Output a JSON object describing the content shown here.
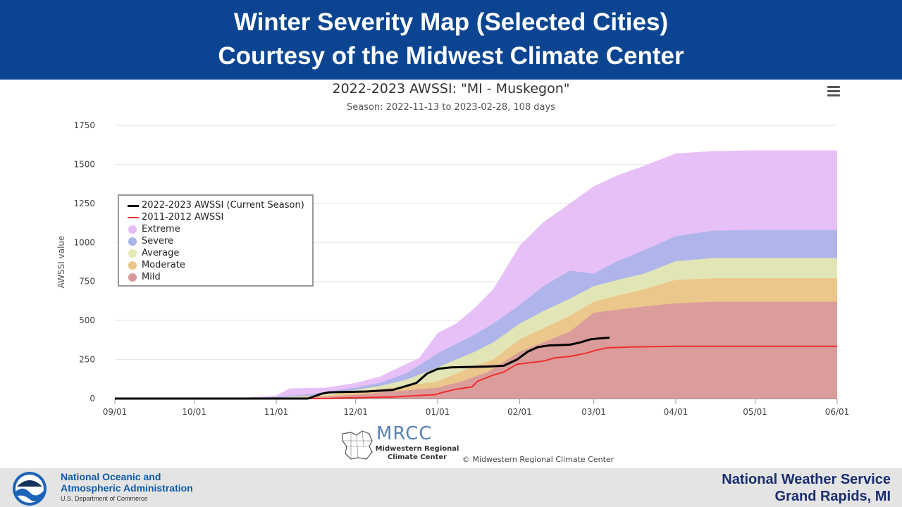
{
  "banner": {
    "line1": "Winter Severity Map (Selected Cities)",
    "line2": "Courtesy of the Midwest Climate Center"
  },
  "chart_data": {
    "type": "area",
    "title": "2022-2023 AWSSI: \"MI - Muskegon\"",
    "subtitle": "Season: 2022-11-13 to 2023-02-28, 108 days",
    "ylabel": "AWSSI value",
    "xlabel": "",
    "ylim": [
      0,
      1750
    ],
    "yticks": [
      0,
      250,
      500,
      750,
      1000,
      1250,
      1500,
      1750
    ],
    "xlim": [
      "2022-09-01",
      "2023-06-01"
    ],
    "xticks": [
      {
        "date": "2022-09-01",
        "label": "09/01"
      },
      {
        "date": "2022-10-01",
        "label": "10/01"
      },
      {
        "date": "2022-11-01",
        "label": "11/01"
      },
      {
        "date": "2022-12-01",
        "label": "12/01"
      },
      {
        "date": "2023-01-01",
        "label": "01/01"
      },
      {
        "date": "2023-02-01",
        "label": "02/01"
      },
      {
        "date": "2023-03-01",
        "label": "03/01"
      },
      {
        "date": "2023-04-01",
        "label": "04/01"
      },
      {
        "date": "2023-05-01",
        "label": "05/01"
      },
      {
        "date": "2023-06-01",
        "label": "06/01"
      }
    ],
    "grid": true,
    "legend_position": "upper-left",
    "bands": [
      {
        "name": "Extreme",
        "color": "#e6bbf7",
        "points": [
          [
            "2022-09-01",
            0
          ],
          [
            "2022-10-10",
            0
          ],
          [
            "2022-10-20",
            5
          ],
          [
            "2022-11-01",
            20
          ],
          [
            "2022-11-06",
            65
          ],
          [
            "2022-11-20",
            70
          ],
          [
            "2022-12-01",
            100
          ],
          [
            "2022-12-10",
            140
          ],
          [
            "2022-12-20",
            220
          ],
          [
            "2022-12-25",
            260
          ],
          [
            "2023-01-01",
            420
          ],
          [
            "2023-01-08",
            480
          ],
          [
            "2023-01-15",
            580
          ],
          [
            "2023-01-22",
            700
          ],
          [
            "2023-02-01",
            980
          ],
          [
            "2023-02-10",
            1130
          ],
          [
            "2023-02-20",
            1250
          ],
          [
            "2023-03-01",
            1360
          ],
          [
            "2023-03-10",
            1430
          ],
          [
            "2023-03-20",
            1490
          ],
          [
            "2023-04-01",
            1570
          ],
          [
            "2023-04-15",
            1585
          ],
          [
            "2023-05-01",
            1590
          ],
          [
            "2023-06-01",
            1590
          ]
        ]
      },
      {
        "name": "Severe",
        "color": "#a9b4e8",
        "points": [
          [
            "2022-09-01",
            0
          ],
          [
            "2022-10-10",
            0
          ],
          [
            "2022-10-25",
            2
          ],
          [
            "2022-11-01",
            10
          ],
          [
            "2022-11-15",
            30
          ],
          [
            "2022-12-01",
            70
          ],
          [
            "2022-12-10",
            100
          ],
          [
            "2022-12-20",
            160
          ],
          [
            "2023-01-01",
            290
          ],
          [
            "2023-01-08",
            350
          ],
          [
            "2023-01-15",
            410
          ],
          [
            "2023-01-22",
            480
          ],
          [
            "2023-02-01",
            600
          ],
          [
            "2023-02-10",
            720
          ],
          [
            "2023-02-20",
            820
          ],
          [
            "2023-03-01",
            800
          ],
          [
            "2023-03-10",
            880
          ],
          [
            "2023-03-20",
            950
          ],
          [
            "2023-04-01",
            1040
          ],
          [
            "2023-04-15",
            1075
          ],
          [
            "2023-05-01",
            1080
          ],
          [
            "2023-06-01",
            1080
          ]
        ]
      },
      {
        "name": "Average",
        "color": "#e6eab2",
        "points": [
          [
            "2022-09-01",
            0
          ],
          [
            "2022-10-15",
            0
          ],
          [
            "2022-11-01",
            5
          ],
          [
            "2022-11-15",
            20
          ],
          [
            "2022-12-01",
            55
          ],
          [
            "2022-12-10",
            80
          ],
          [
            "2022-12-20",
            120
          ],
          [
            "2023-01-01",
            200
          ],
          [
            "2023-01-08",
            250
          ],
          [
            "2023-01-15",
            300
          ],
          [
            "2023-01-22",
            360
          ],
          [
            "2023-02-01",
            480
          ],
          [
            "2023-02-10",
            560
          ],
          [
            "2023-02-20",
            640
          ],
          [
            "2023-03-01",
            720
          ],
          [
            "2023-03-10",
            760
          ],
          [
            "2023-03-20",
            800
          ],
          [
            "2023-04-01",
            880
          ],
          [
            "2023-04-15",
            900
          ],
          [
            "2023-06-01",
            900
          ]
        ]
      },
      {
        "name": "Moderate",
        "color": "#edc487",
        "points": [
          [
            "2022-09-01",
            0
          ],
          [
            "2022-10-20",
            0
          ],
          [
            "2022-11-05",
            5
          ],
          [
            "2022-11-20",
            20
          ],
          [
            "2022-12-01",
            45
          ],
          [
            "2022-12-15",
            70
          ],
          [
            "2023-01-01",
            110
          ],
          [
            "2023-01-08",
            160
          ],
          [
            "2023-01-15",
            210
          ],
          [
            "2023-01-22",
            250
          ],
          [
            "2023-02-01",
            380
          ],
          [
            "2023-02-10",
            450
          ],
          [
            "2023-02-20",
            530
          ],
          [
            "2023-03-01",
            620
          ],
          [
            "2023-03-10",
            660
          ],
          [
            "2023-03-20",
            700
          ],
          [
            "2023-04-01",
            760
          ],
          [
            "2023-04-15",
            770
          ],
          [
            "2023-06-01",
            770
          ]
        ]
      },
      {
        "name": "Mild",
        "color": "#d9999c",
        "points": [
          [
            "2022-09-01",
            0
          ],
          [
            "2022-10-25",
            0
          ],
          [
            "2022-11-10",
            5
          ],
          [
            "2022-12-01",
            25
          ],
          [
            "2022-12-15",
            45
          ],
          [
            "2023-01-01",
            70
          ],
          [
            "2023-01-10",
            110
          ],
          [
            "2023-01-20",
            170
          ],
          [
            "2023-02-01",
            300
          ],
          [
            "2023-02-10",
            360
          ],
          [
            "2023-02-20",
            430
          ],
          [
            "2023-03-01",
            550
          ],
          [
            "2023-03-10",
            570
          ],
          [
            "2023-03-20",
            590
          ],
          [
            "2023-04-01",
            610
          ],
          [
            "2023-04-15",
            620
          ],
          [
            "2023-06-01",
            620
          ]
        ]
      }
    ],
    "series": [
      {
        "name": "2022-2023 AWSSI (Current Season)",
        "color": "#000000",
        "points": [
          [
            "2022-09-01",
            0
          ],
          [
            "2022-11-13",
            0
          ],
          [
            "2022-11-18",
            30
          ],
          [
            "2022-11-21",
            40
          ],
          [
            "2022-12-05",
            45
          ],
          [
            "2022-12-15",
            55
          ],
          [
            "2022-12-20",
            80
          ],
          [
            "2022-12-24",
            100
          ],
          [
            "2022-12-28",
            160
          ],
          [
            "2023-01-01",
            190
          ],
          [
            "2023-01-06",
            200
          ],
          [
            "2023-01-20",
            205
          ],
          [
            "2023-01-26",
            210
          ],
          [
            "2023-01-31",
            250
          ],
          [
            "2023-02-04",
            300
          ],
          [
            "2023-02-08",
            330
          ],
          [
            "2023-02-12",
            340
          ],
          [
            "2023-02-20",
            345
          ],
          [
            "2023-02-24",
            360
          ],
          [
            "2023-02-28",
            380
          ],
          [
            "2023-03-03",
            385
          ],
          [
            "2023-03-07",
            390
          ]
        ]
      },
      {
        "name": "2011-2012 AWSSI",
        "color": "#ee2e2e",
        "points": [
          [
            "2022-09-01",
            0
          ],
          [
            "2022-11-20",
            0
          ],
          [
            "2022-11-25",
            3
          ],
          [
            "2022-12-15",
            10
          ],
          [
            "2022-12-25",
            20
          ],
          [
            "2022-12-31",
            25
          ],
          [
            "2023-01-03",
            40
          ],
          [
            "2023-01-08",
            60
          ],
          [
            "2023-01-14",
            75
          ],
          [
            "2023-01-16",
            110
          ],
          [
            "2023-01-22",
            150
          ],
          [
            "2023-01-26",
            170
          ],
          [
            "2023-01-31",
            220
          ],
          [
            "2023-02-05",
            230
          ],
          [
            "2023-02-10",
            240
          ],
          [
            "2023-02-14",
            260
          ],
          [
            "2023-02-20",
            270
          ],
          [
            "2023-02-26",
            290
          ],
          [
            "2023-03-02",
            310
          ],
          [
            "2023-03-06",
            325
          ],
          [
            "2023-03-15",
            330
          ],
          [
            "2023-04-01",
            335
          ],
          [
            "2023-06-01",
            335
          ]
        ]
      }
    ]
  },
  "toolbar": {
    "menu_icon": "hamburger-menu-icon"
  },
  "watermark": {
    "letters": "MRCC",
    "name_line1": "Midwestern Regional",
    "name_line2": "Climate Center"
  },
  "credit": "© Midwestern Regional Climate Center",
  "footer": {
    "logo_text": "NOAA",
    "org_line1": "National Oceanic and",
    "org_line2": "Atmospheric Administration",
    "dept": "U.S. Department of Commerce",
    "nws_line1": "National Weather Service",
    "nws_line2": "Grand Rapids, MI"
  }
}
